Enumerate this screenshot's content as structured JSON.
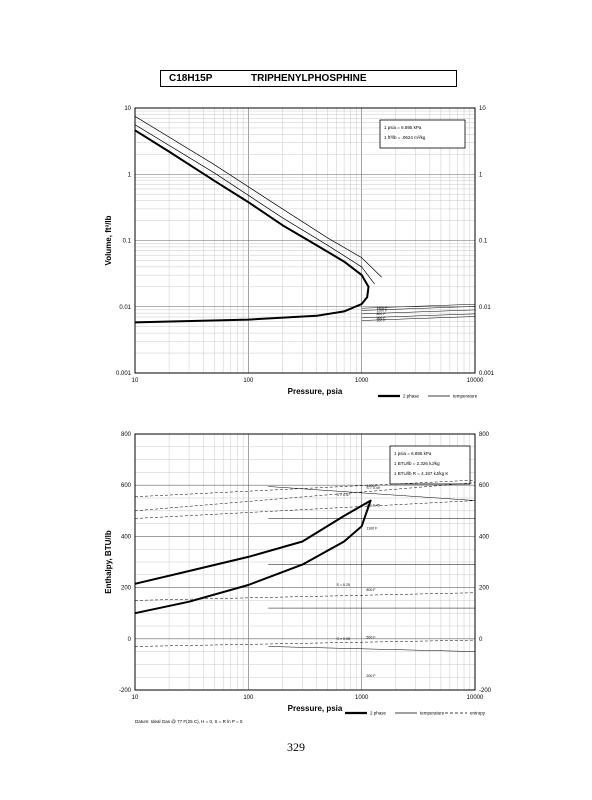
{
  "header": {
    "formula": "C18H15P",
    "name": "TRIPHENYLPHOSPHINE"
  },
  "page_number": "329",
  "chart_data": [
    {
      "type": "line",
      "xscale": "log",
      "yscale": "log",
      "xlim": [
        10,
        10000
      ],
      "ylim": [
        0.001,
        10
      ],
      "xlabel": "Pressure,  psia",
      "ylabel": "Volume, ft^3/lb",
      "x_ticks": [
        "10",
        "100",
        "1000",
        "10000"
      ],
      "y_ticks": [
        "0.001",
        "0.01",
        "0.1",
        "1",
        "10"
      ],
      "notes": [
        "1 psia = 6.895 kPa",
        "1 ft^3/lb = .0624 m^3/kg"
      ],
      "legend": [
        "2 phase",
        "temperature"
      ],
      "series": [
        {
          "name": "2 phase",
          "points": [
            [
              10,
              4.6
            ],
            [
              20,
              2.2
            ],
            [
              50,
              0.8
            ],
            [
              100,
              0.38
            ],
            [
              200,
              0.17
            ],
            [
              400,
              0.085
            ],
            [
              700,
              0.048
            ],
            [
              1000,
              0.03
            ],
            [
              1150,
              0.02
            ],
            [
              1120,
              0.014
            ],
            [
              1000,
              0.011
            ],
            [
              700,
              0.0085
            ],
            [
              400,
              0.0073
            ],
            [
              100,
              0.0064
            ],
            [
              10,
              0.0058
            ]
          ]
        },
        {
          "name": "temperature",
          "points": [
            [
              10,
              5.6
            ],
            [
              50,
              1.05
            ],
            [
              200,
              0.22
            ],
            [
              500,
              0.085
            ],
            [
              1000,
              0.04
            ],
            [
              1300,
              0.022
            ]
          ]
        },
        {
          "name": "temperature",
          "points": [
            [
              10,
              7.5
            ],
            [
              50,
              1.4
            ],
            [
              200,
              0.3
            ],
            [
              500,
              0.11
            ],
            [
              1000,
              0.055
            ],
            [
              1500,
              0.028
            ]
          ]
        }
      ],
      "isotherm_labels": [
        "1400 F",
        "1100 F",
        "800 F",
        "500 F",
        "200 F"
      ]
    },
    {
      "type": "line",
      "xscale": "log",
      "yscale": "linear",
      "xlim": [
        10,
        10000
      ],
      "ylim": [
        -200,
        800
      ],
      "xlabel": "Pressure,  psia",
      "ylabel": "Enthalpy, BTU/lb",
      "x_ticks": [
        "10",
        "100",
        "1000",
        "10000"
      ],
      "y_ticks": [
        "-200",
        "0",
        "200",
        "400",
        "600",
        "800"
      ],
      "notes": [
        "1 psia = 6.895 kPa",
        "1 BTU/lb = 2.326 kJ/kg",
        "1 BTU/lb R = 4.187 kJ/kg K"
      ],
      "legend": [
        "2 phase",
        "temperature",
        "entropy"
      ],
      "footer_note": "Datum: Ideal Gas @ 77 F(25 C), H = 0,  S = R ln P = 0",
      "series": [
        {
          "name": "2 phase",
          "points": [
            [
              10,
              100
            ],
            [
              30,
              145
            ],
            [
              100,
              210
            ],
            [
              300,
              290
            ],
            [
              700,
              380
            ],
            [
              1000,
              440
            ],
            [
              1200,
              540
            ],
            [
              1000,
              520
            ],
            [
              700,
              480
            ],
            [
              300,
              380
            ],
            [
              100,
              320
            ],
            [
              30,
              265
            ],
            [
              10,
              215
            ]
          ]
        }
      ],
      "isotherm_labels": [
        "1400 F",
        "1100 F",
        "800 F",
        "500 F",
        "200 F"
      ],
      "entropy_labels": [
        "S = 0.49",
        "S = 0.47",
        "S = 0.45",
        "S = 0.25",
        "S = 0.05"
      ]
    }
  ]
}
